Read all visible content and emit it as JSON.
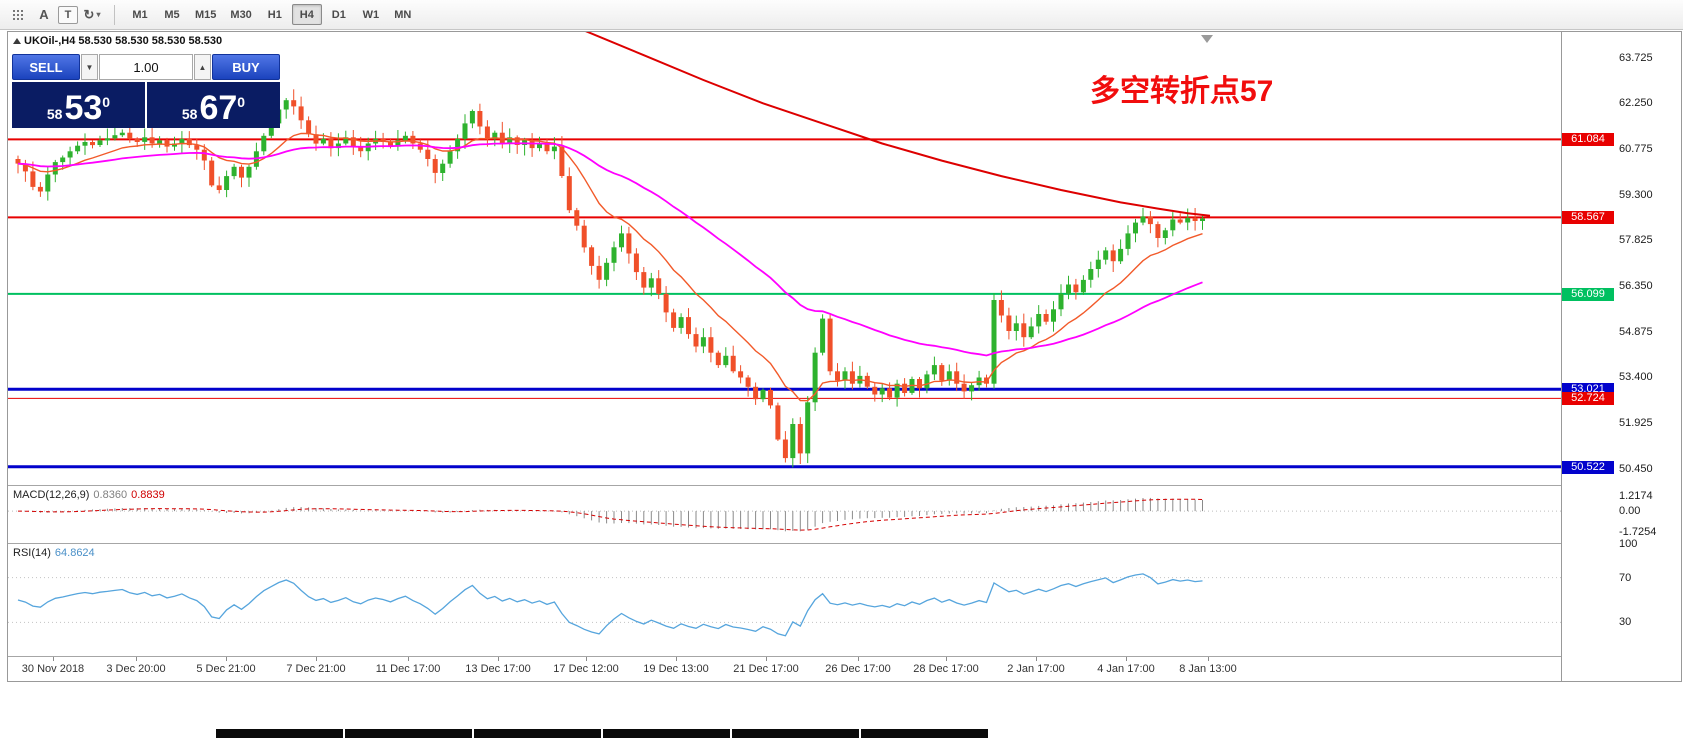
{
  "toolbar": {
    "timeframes": [
      "M1",
      "M5",
      "M15",
      "M30",
      "H1",
      "H4",
      "D1",
      "W1",
      "MN"
    ],
    "active_timeframe": "H4"
  },
  "icons": {
    "label_tool": "A",
    "text_tool": "T",
    "cycle_tool": "↻",
    "caret_down": "▾",
    "volume_decrease": "▼",
    "volume_increase": "▲"
  },
  "chart_header": {
    "symbol_title": "UKOil-,H4 58.530 58.530 58.530 58.530"
  },
  "trade_panel": {
    "sell_label": "SELL",
    "buy_label": "BUY",
    "volume_value": "1.00",
    "sell_price": {
      "small": "58",
      "big": "53",
      "sup": "0"
    },
    "buy_price": {
      "small": "58",
      "big": "67",
      "sup": "0"
    }
  },
  "annotation": {
    "text": "多空转折点57",
    "color": "#f10d0d"
  },
  "macd_panel": {
    "name": "MACD(12,26,9)",
    "value_main": "0.8360",
    "value_signal": "0.8839",
    "ylim": [
      -2.6,
      2.05
    ],
    "ticks": [
      {
        "label": "1.2174",
        "value": 1.2174
      },
      {
        "label": "0.00",
        "value": 0
      },
      {
        "label": "-1.7254",
        "value": -1.7254
      }
    ],
    "hist_color": "#8a8a8a",
    "signal_color": "#d40000"
  },
  "rsi_panel": {
    "name": "RSI(14)",
    "value": "64.8624",
    "ylim": [
      0,
      100
    ],
    "levels": [
      70,
      30
    ],
    "line_color": "#56a5dd",
    "ticks": [
      {
        "label": "100",
        "value": 100
      },
      {
        "label": "70",
        "value": 70
      },
      {
        "label": "30",
        "value": 30
      }
    ]
  },
  "bottom_bar": {
    "segments": 6
  },
  "chart_data": {
    "type": "candlestick",
    "symbol": "UKOil-",
    "timeframe": "H4",
    "title": "UKOil-,H4",
    "ylim": [
      49.93,
      64.55
    ],
    "up_color": "#2eb22e",
    "down_color": "#f0502a",
    "closes": [
      60.3,
      60.05,
      59.55,
      59.4,
      59.95,
      60.35,
      60.5,
      60.7,
      60.88,
      61.0,
      60.9,
      61.05,
      61.12,
      61.22,
      61.3,
      61.1,
      61.0,
      61.15,
      60.95,
      61.05,
      60.85,
      60.95,
      61.1,
      60.9,
      60.75,
      60.4,
      59.6,
      59.45,
      59.9,
      60.2,
      59.85,
      60.2,
      60.7,
      61.2,
      61.6,
      62.05,
      62.35,
      62.15,
      61.7,
      61.25,
      60.95,
      61.1,
      60.8,
      60.95,
      61.15,
      60.85,
      60.7,
      60.95,
      61.1,
      61.0,
      60.85,
      61.05,
      61.2,
      60.95,
      60.75,
      60.45,
      60.0,
      60.3,
      60.7,
      61.1,
      61.6,
      62.0,
      61.5,
      61.1,
      61.3,
      60.95,
      61.15,
      60.9,
      61.05,
      60.8,
      60.95,
      60.7,
      60.85,
      59.9,
      58.8,
      58.3,
      57.6,
      57.0,
      56.55,
      57.1,
      57.6,
      58.05,
      57.4,
      56.8,
      56.3,
      56.6,
      56.1,
      55.5,
      55.0,
      55.35,
      54.8,
      54.4,
      54.7,
      54.2,
      53.8,
      54.1,
      53.6,
      53.4,
      53.1,
      52.7,
      53.0,
      52.5,
      51.4,
      50.8,
      51.9,
      50.95,
      52.6,
      54.2,
      55.3,
      53.6,
      53.3,
      53.6,
      53.2,
      53.45,
      53.1,
      52.85,
      53.05,
      52.75,
      53.2,
      52.9,
      53.35,
      53.05,
      53.5,
      53.8,
      53.3,
      53.6,
      53.2,
      52.95,
      53.15,
      53.4,
      53.2,
      55.9,
      55.4,
      54.9,
      55.15,
      54.7,
      55.05,
      55.45,
      55.2,
      55.6,
      56.1,
      56.4,
      56.15,
      56.55,
      56.9,
      57.2,
      57.5,
      57.15,
      57.55,
      58.05,
      58.4,
      58.6,
      58.35,
      57.9,
      58.15,
      58.5,
      58.4,
      58.55,
      58.45,
      58.53
    ],
    "overlays": [
      {
        "name": "ma-fast",
        "type": "ema",
        "period": 13,
        "color": "#f25a2a",
        "width": 1.4
      },
      {
        "name": "ma-slow",
        "type": "ema",
        "period": 45,
        "color": "#ff00ff",
        "width": 1.8
      },
      {
        "name": "ma-long",
        "type": "points",
        "color": "#dd0000",
        "width": 2,
        "points": [
          [
            76,
            64.6
          ],
          [
            84,
            63.8
          ],
          [
            92,
            63.0
          ],
          [
            100,
            62.25
          ],
          [
            108,
            61.6
          ],
          [
            116,
            60.95
          ],
          [
            124,
            60.4
          ],
          [
            132,
            59.9
          ],
          [
            140,
            59.45
          ],
          [
            148,
            59.05
          ],
          [
            153,
            58.85
          ],
          [
            157,
            58.7
          ],
          [
            160,
            58.62
          ]
        ]
      }
    ],
    "levels": [
      {
        "value": 61.084,
        "label": "61.084",
        "color": "#e80000",
        "thickness": 2
      },
      {
        "value": 58.567,
        "label": "58.567",
        "color": "#e80000",
        "thickness": 2
      },
      {
        "value": 56.099,
        "label": "56.099",
        "color": "#00c060",
        "thickness": 2
      },
      {
        "value": 53.021,
        "label": "53.021",
        "color": "#0202cc",
        "thickness": 3
      },
      {
        "value": 52.724,
        "label": "52.724",
        "color": "#e80000",
        "thickness": 1
      },
      {
        "value": 50.522,
        "label": "50.522",
        "color": "#0202cc",
        "thickness": 3
      }
    ],
    "price_ticks": [
      {
        "label": "63.725",
        "value": 63.725
      },
      {
        "label": "62.250",
        "value": 62.25
      },
      {
        "label": "60.775",
        "value": 60.775
      },
      {
        "label": "59.300",
        "value": 59.3
      },
      {
        "label": "57.825",
        "value": 57.825
      },
      {
        "label": "56.350",
        "value": 56.35
      },
      {
        "label": "54.875",
        "value": 54.875
      },
      {
        "label": "53.400",
        "value": 53.4
      },
      {
        "label": "51.925",
        "value": 51.925
      },
      {
        "label": "50.450",
        "value": 50.45
      }
    ],
    "time_labels": [
      {
        "text": "30 Nov 2018",
        "i": 4.7
      },
      {
        "text": "3 Dec 20:00",
        "i": 15.8
      },
      {
        "text": "5 Dec 21:00",
        "i": 27.9
      },
      {
        "text": "7 Dec 21:00",
        "i": 40.0
      },
      {
        "text": "11 Dec 17:00",
        "i": 52.3
      },
      {
        "text": "13 Dec 17:00",
        "i": 64.4
      },
      {
        "text": "17 Dec 12:00",
        "i": 76.2
      },
      {
        "text": "19 Dec 13:00",
        "i": 88.3
      },
      {
        "text": "21 Dec 17:00",
        "i": 100.4
      },
      {
        "text": "26 Dec 17:00",
        "i": 112.8
      },
      {
        "text": "28 Dec 17:00",
        "i": 124.6
      },
      {
        "text": "2 Jan 17:00",
        "i": 136.6
      },
      {
        "text": "4 Jan 17:00",
        "i": 148.7
      },
      {
        "text": "8 Jan 13:00",
        "i": 159.7
      }
    ]
  }
}
